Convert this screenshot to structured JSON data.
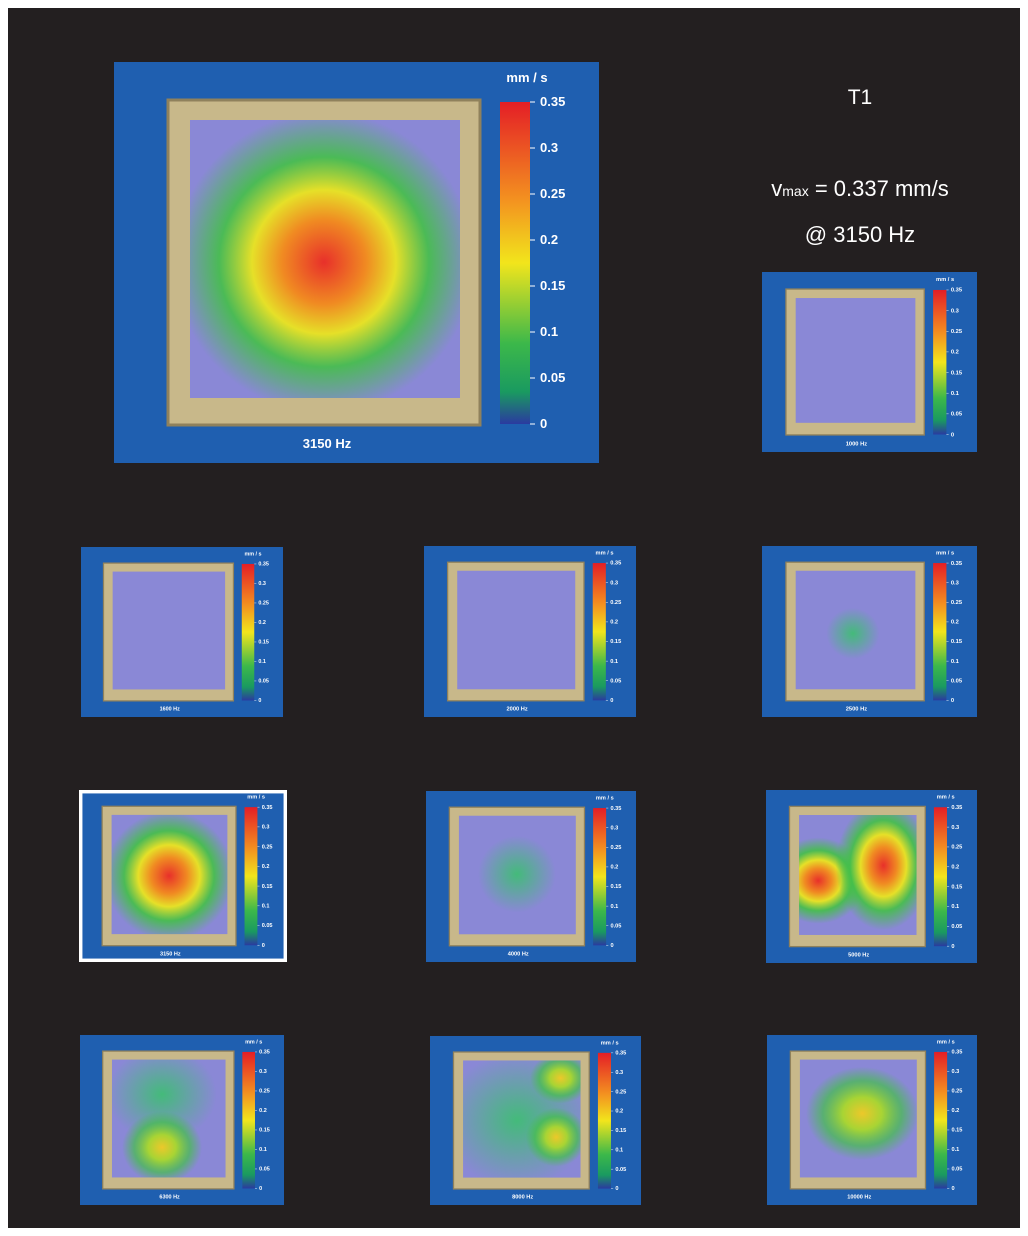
{
  "figure": {
    "title": "T1",
    "vmax": {
      "symbol": "v",
      "subscript": "max",
      "text": "= 0.337 mm/s"
    },
    "peak": "@ 3150 Hz",
    "colorbar": {
      "unit": "mm / s",
      "lim": [
        0,
        0.35
      ],
      "ticks": [
        0.35,
        0.3,
        0.25,
        0.2,
        0.15,
        0.1,
        0.05,
        0
      ]
    },
    "main_panel": {
      "label": "3150 Hz"
    },
    "panels": [
      {
        "label": "1000 Hz"
      },
      {
        "label": "1600 Hz"
      },
      {
        "label": "2000 Hz"
      },
      {
        "label": "2500 Hz"
      },
      {
        "label": "3150 Hz",
        "highlighted": true
      },
      {
        "label": "4000 Hz"
      },
      {
        "label": "5000 Hz"
      },
      {
        "label": "6300 Hz"
      },
      {
        "label": "8000 Hz"
      },
      {
        "label": "10000 Hz"
      }
    ]
  }
}
